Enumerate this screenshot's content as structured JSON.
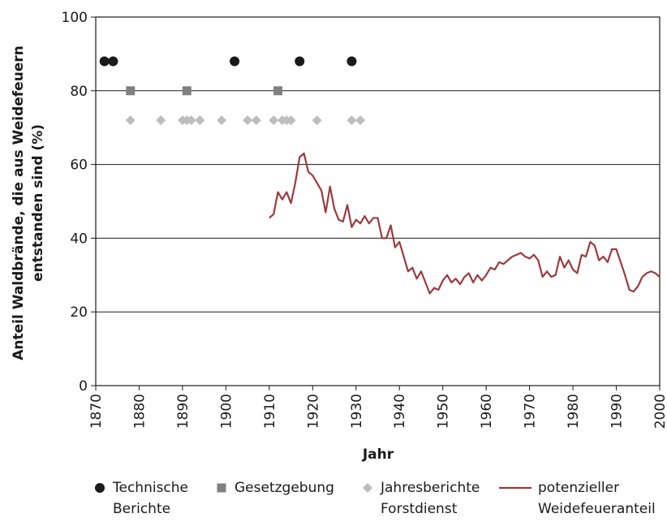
{
  "chart_data": {
    "type": "line",
    "x_label": "Jahr",
    "y_label": [
      "Anteil Waldbrände, die aus Weidefeuern",
      "entstanden sind (%)"
    ],
    "xlim": [
      1870,
      2000
    ],
    "xticks": [
      1870,
      1880,
      1890,
      1900,
      1910,
      1920,
      1930,
      1940,
      1950,
      1960,
      1970,
      1980,
      1990,
      2000
    ],
    "ylim": [
      0,
      100
    ],
    "yticks": [
      0,
      20,
      40,
      60,
      80,
      100
    ],
    "grid": true,
    "series": [
      {
        "name": "Technische Berichte",
        "marker": "circle",
        "color": "#1a1a1a",
        "x": [
          1872,
          1874,
          1902,
          1917,
          1929
        ],
        "values": [
          88,
          88,
          88,
          88,
          88
        ]
      },
      {
        "name": "Gesetzgebung",
        "marker": "square",
        "color": "#808080",
        "x": [
          1878,
          1891,
          1912
        ],
        "values": [
          80,
          80,
          80
        ]
      },
      {
        "name": "Jahresberichte Forstdienst",
        "marker": "diamond",
        "color": "#bdbdbd",
        "x": [
          1878,
          1885,
          1890,
          1891,
          1892,
          1894,
          1899,
          1905,
          1907,
          1911,
          1913,
          1914,
          1915,
          1921,
          1929,
          1931
        ],
        "values": [
          72,
          72,
          72,
          72,
          72,
          72,
          72,
          72,
          72,
          72,
          72,
          72,
          72,
          72,
          72,
          72
        ]
      },
      {
        "name": "potenzieller Weidefeueranteil",
        "marker": "line",
        "color": "#9b3b3f",
        "x": [
          1910,
          1911,
          1912,
          1913,
          1914,
          1915,
          1916,
          1917,
          1918,
          1919,
          1920,
          1921,
          1922,
          1923,
          1924,
          1925,
          1926,
          1927,
          1928,
          1929,
          1930,
          1931,
          1932,
          1933,
          1934,
          1935,
          1936,
          1937,
          1938,
          1939,
          1940,
          1941,
          1942,
          1943,
          1944,
          1945,
          1946,
          1947,
          1948,
          1949,
          1950,
          1951,
          1952,
          1953,
          1954,
          1955,
          1956,
          1957,
          1958,
          1959,
          1960,
          1961,
          1962,
          1963,
          1964,
          1965,
          1966,
          1967,
          1968,
          1969,
          1970,
          1971,
          1972,
          1973,
          1974,
          1975,
          1976,
          1977,
          1978,
          1979,
          1980,
          1981,
          1982,
          1983,
          1984,
          1985,
          1986,
          1987,
          1988,
          1989,
          1990,
          1991,
          1992,
          1993,
          1994,
          1995,
          1996,
          1997,
          1998,
          1999,
          2000
        ],
        "values": [
          45.5,
          46.5,
          52.5,
          50.5,
          52.5,
          49.5,
          55,
          62,
          63,
          58,
          57,
          55,
          53,
          47,
          54,
          48,
          45,
          44.5,
          49,
          43,
          45,
          44,
          46,
          44,
          45.5,
          45.5,
          40,
          40,
          43.5,
          37.5,
          39,
          35,
          31,
          32,
          29,
          31,
          28,
          25,
          26.5,
          26,
          28.5,
          30,
          28,
          29,
          27.5,
          29.5,
          30.5,
          28,
          30,
          28.5,
          30,
          32,
          31.5,
          33.5,
          33,
          34,
          35,
          35.5,
          36,
          35,
          34.5,
          35.5,
          34,
          29.5,
          31,
          29.5,
          30,
          35,
          32,
          34,
          31.5,
          30.5,
          35.5,
          35,
          39,
          38,
          34,
          35,
          33.5,
          37,
          37,
          33.5,
          30,
          26,
          25.5,
          27,
          29.5,
          30.5,
          31,
          30.5,
          29.5
        ]
      }
    ]
  }
}
